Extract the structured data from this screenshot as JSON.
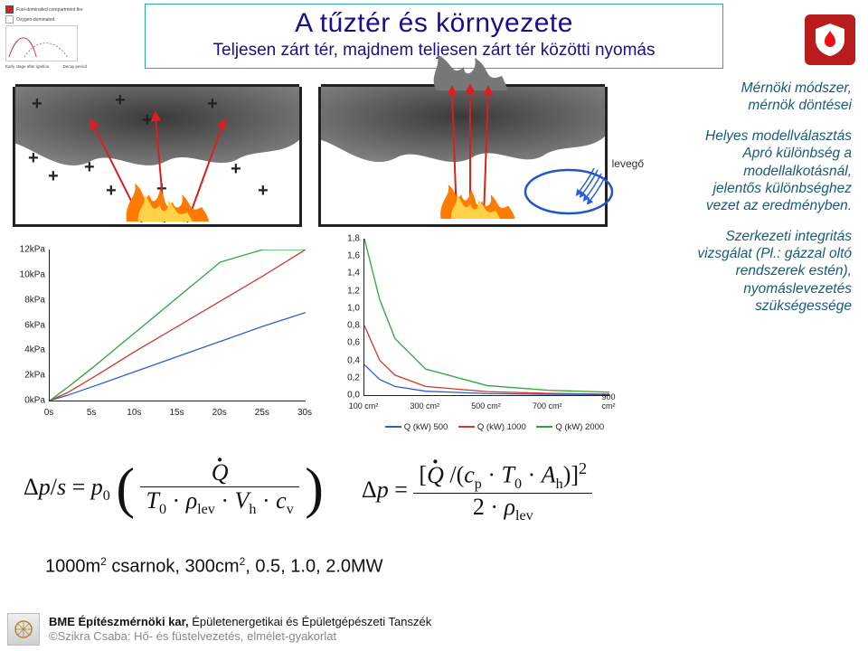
{
  "title": {
    "main": "A tűztér és környezete",
    "sub": "Teljesen zárt tér, majdnem teljesen zárt tér közötti nyomás"
  },
  "top_left_legend": {
    "items": [
      "Fuel-dominated compartment fire",
      "Oxygen-dominated"
    ],
    "axis_labels": [
      "Early stage after ignition",
      "Decay period"
    ],
    "row_colors": [
      "#e01f1f",
      "#ffffff"
    ]
  },
  "right_notes": {
    "block1_line1": "Mérnöki módszer,",
    "block1_line2": "mérnök döntései",
    "block2_line1": "Helyes modellválasztás",
    "block2_line2": "Apró különbség a",
    "block2_line3": "modellalkotásnál,",
    "block2_line4": "jelentős különbséghez",
    "block2_line5": "vezet az eredményben.",
    "block3_line1": "Szerkezeti integritás",
    "block3_line2": "vizsgálat (Pl.: gázzal oltó",
    "block3_line3": "rendszerek estén),",
    "block3_line4": "nyomáslevezetés",
    "block3_line5": "szükségessége"
  },
  "air_label": "levegő",
  "fire": {
    "smoke_color": "#6b6b6b",
    "smoke_dark": "#3c3c3c",
    "flame_orange": "#ff7a00",
    "flame_yellow": "#ffd24a",
    "flame_red": "#d9260a",
    "plus_color": "#222",
    "arrow_red": "#d92020",
    "arrow_blue": "#2b5fd9"
  },
  "chart1": {
    "type": "line",
    "ylim": [
      0,
      12
    ],
    "ytick_step_label_suffix": "kPa",
    "yticks": [
      "0kPa",
      "2kPa",
      "4kPa",
      "6kPa",
      "8kPa",
      "10kPa",
      "12kPa"
    ],
    "xlim": [
      0,
      30
    ],
    "xticks": [
      "0s",
      "5s",
      "10s",
      "15s",
      "20s",
      "25s",
      "30s"
    ],
    "series": [
      {
        "color": "#2a5fd3",
        "x": [
          0,
          2,
          5,
          10,
          15,
          20,
          25,
          30
        ],
        "y": [
          0,
          0.4,
          1.1,
          2.3,
          3.5,
          4.7,
          5.9,
          7.0
        ]
      },
      {
        "color": "#d23a2a",
        "x": [
          0,
          2,
          5,
          10,
          15,
          20,
          25,
          30
        ],
        "y": [
          0,
          0.6,
          1.8,
          3.9,
          5.9,
          7.9,
          9.9,
          12.0
        ]
      },
      {
        "color": "#2aa63a",
        "x": [
          0,
          2,
          5,
          10,
          15,
          20,
          25,
          30
        ],
        "y": [
          0,
          1.0,
          2.6,
          5.4,
          8.2,
          11.0,
          12.0,
          12.0
        ]
      }
    ],
    "line_width": 1.3,
    "axis_color": "#222",
    "label_fontsize": 10
  },
  "chart2": {
    "type": "line",
    "ylim": [
      0,
      1.8
    ],
    "ytick_step": 0.2,
    "yticks": [
      "0,0",
      "0,2",
      "0,4",
      "0,6",
      "0,8",
      "1,0",
      "1,2",
      "1,4",
      "1,6",
      "1,8"
    ],
    "xlim": [
      100,
      900
    ],
    "xticks": [
      "100 cm²",
      "300 cm²",
      "500 cm²",
      "700 cm²",
      "900 cm²"
    ],
    "xticks_pos": [
      100,
      300,
      500,
      700,
      900
    ],
    "series": [
      {
        "label": "Q (kW) 500",
        "color": "#2a5fd3",
        "x": [
          100,
          150,
          200,
          300,
          500,
          700,
          900
        ],
        "y": [
          0.35,
          0.18,
          0.1,
          0.045,
          0.018,
          0.009,
          0.006
        ]
      },
      {
        "label": "Q (kW) 1000",
        "color": "#d23a2a",
        "x": [
          100,
          150,
          200,
          300,
          500,
          700,
          900
        ],
        "y": [
          0.8,
          0.4,
          0.23,
          0.1,
          0.04,
          0.02,
          0.012
        ]
      },
      {
        "label": "Q (kW) 2000",
        "color": "#2aa63a",
        "x": [
          100,
          150,
          200,
          300,
          500,
          700,
          900
        ],
        "y": [
          1.8,
          1.1,
          0.65,
          0.3,
          0.11,
          0.056,
          0.034
        ]
      }
    ],
    "line_width": 1.3,
    "axis_color": "#222",
    "label_fontsize": 10,
    "legend_fontsize": 9.5
  },
  "formula1": {
    "lhs": "Δp/s = p₀",
    "num": "Q",
    "den_parts": [
      "T₀",
      "ρ",
      "lev",
      "V",
      "h",
      "c",
      "v"
    ]
  },
  "formula2": {
    "lhs": "Δp =",
    "num_parts": [
      "Q",
      "c",
      "p",
      "T₀",
      "A",
      "h"
    ],
    "den_parts": [
      "2",
      "ρ",
      "lev"
    ]
  },
  "caption": "1000m² csarnok, 300cm², 0.5, 1.0, 2.0MW",
  "footer": {
    "line1_bold": "BME Építészmérnöki kar, ",
    "line1_rest": "Épületenergetikai és Épületgépészeti Tanszék",
    "line2": "©Szikra Csaba: Hő- és füstelvezetés, elmélet-gyakorlat"
  },
  "colors": {
    "title_border": "#2aa8a2",
    "title_text": "#1a0f8a",
    "note_text": "#185a7d",
    "logo_bg": "#b91c1c"
  }
}
